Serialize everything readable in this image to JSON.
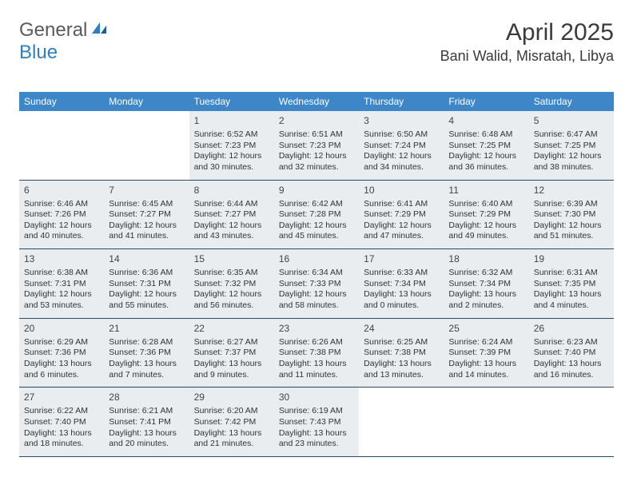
{
  "logo": {
    "text1": "General",
    "text2": "Blue"
  },
  "title": "April 2025",
  "location": "Bani Walid, Misratah, Libya",
  "colors": {
    "header_bg": "#3d87c9",
    "header_text": "#ffffff",
    "border": "#2b4a66",
    "shade_bg": "#e9edef",
    "text": "#333333",
    "title_text": "#3a3a3a",
    "logo_gray": "#5a5a5a",
    "logo_blue": "#2f7fbf"
  },
  "daynames": [
    "Sunday",
    "Monday",
    "Tuesday",
    "Wednesday",
    "Thursday",
    "Friday",
    "Saturday"
  ],
  "weeks": [
    [
      {
        "num": "",
        "shade": false,
        "sunrise": "",
        "sunset": "",
        "daylight": ""
      },
      {
        "num": "",
        "shade": false,
        "sunrise": "",
        "sunset": "",
        "daylight": ""
      },
      {
        "num": "1",
        "shade": true,
        "sunrise": "Sunrise: 6:52 AM",
        "sunset": "Sunset: 7:23 PM",
        "daylight": "Daylight: 12 hours and 30 minutes."
      },
      {
        "num": "2",
        "shade": true,
        "sunrise": "Sunrise: 6:51 AM",
        "sunset": "Sunset: 7:23 PM",
        "daylight": "Daylight: 12 hours and 32 minutes."
      },
      {
        "num": "3",
        "shade": true,
        "sunrise": "Sunrise: 6:50 AM",
        "sunset": "Sunset: 7:24 PM",
        "daylight": "Daylight: 12 hours and 34 minutes."
      },
      {
        "num": "4",
        "shade": true,
        "sunrise": "Sunrise: 6:48 AM",
        "sunset": "Sunset: 7:25 PM",
        "daylight": "Daylight: 12 hours and 36 minutes."
      },
      {
        "num": "5",
        "shade": true,
        "sunrise": "Sunrise: 6:47 AM",
        "sunset": "Sunset: 7:25 PM",
        "daylight": "Daylight: 12 hours and 38 minutes."
      }
    ],
    [
      {
        "num": "6",
        "shade": true,
        "sunrise": "Sunrise: 6:46 AM",
        "sunset": "Sunset: 7:26 PM",
        "daylight": "Daylight: 12 hours and 40 minutes."
      },
      {
        "num": "7",
        "shade": true,
        "sunrise": "Sunrise: 6:45 AM",
        "sunset": "Sunset: 7:27 PM",
        "daylight": "Daylight: 12 hours and 41 minutes."
      },
      {
        "num": "8",
        "shade": true,
        "sunrise": "Sunrise: 6:44 AM",
        "sunset": "Sunset: 7:27 PM",
        "daylight": "Daylight: 12 hours and 43 minutes."
      },
      {
        "num": "9",
        "shade": true,
        "sunrise": "Sunrise: 6:42 AM",
        "sunset": "Sunset: 7:28 PM",
        "daylight": "Daylight: 12 hours and 45 minutes."
      },
      {
        "num": "10",
        "shade": true,
        "sunrise": "Sunrise: 6:41 AM",
        "sunset": "Sunset: 7:29 PM",
        "daylight": "Daylight: 12 hours and 47 minutes."
      },
      {
        "num": "11",
        "shade": true,
        "sunrise": "Sunrise: 6:40 AM",
        "sunset": "Sunset: 7:29 PM",
        "daylight": "Daylight: 12 hours and 49 minutes."
      },
      {
        "num": "12",
        "shade": true,
        "sunrise": "Sunrise: 6:39 AM",
        "sunset": "Sunset: 7:30 PM",
        "daylight": "Daylight: 12 hours and 51 minutes."
      }
    ],
    [
      {
        "num": "13",
        "shade": true,
        "sunrise": "Sunrise: 6:38 AM",
        "sunset": "Sunset: 7:31 PM",
        "daylight": "Daylight: 12 hours and 53 minutes."
      },
      {
        "num": "14",
        "shade": true,
        "sunrise": "Sunrise: 6:36 AM",
        "sunset": "Sunset: 7:31 PM",
        "daylight": "Daylight: 12 hours and 55 minutes."
      },
      {
        "num": "15",
        "shade": true,
        "sunrise": "Sunrise: 6:35 AM",
        "sunset": "Sunset: 7:32 PM",
        "daylight": "Daylight: 12 hours and 56 minutes."
      },
      {
        "num": "16",
        "shade": true,
        "sunrise": "Sunrise: 6:34 AM",
        "sunset": "Sunset: 7:33 PM",
        "daylight": "Daylight: 12 hours and 58 minutes."
      },
      {
        "num": "17",
        "shade": true,
        "sunrise": "Sunrise: 6:33 AM",
        "sunset": "Sunset: 7:34 PM",
        "daylight": "Daylight: 13 hours and 0 minutes."
      },
      {
        "num": "18",
        "shade": true,
        "sunrise": "Sunrise: 6:32 AM",
        "sunset": "Sunset: 7:34 PM",
        "daylight": "Daylight: 13 hours and 2 minutes."
      },
      {
        "num": "19",
        "shade": true,
        "sunrise": "Sunrise: 6:31 AM",
        "sunset": "Sunset: 7:35 PM",
        "daylight": "Daylight: 13 hours and 4 minutes."
      }
    ],
    [
      {
        "num": "20",
        "shade": true,
        "sunrise": "Sunrise: 6:29 AM",
        "sunset": "Sunset: 7:36 PM",
        "daylight": "Daylight: 13 hours and 6 minutes."
      },
      {
        "num": "21",
        "shade": true,
        "sunrise": "Sunrise: 6:28 AM",
        "sunset": "Sunset: 7:36 PM",
        "daylight": "Daylight: 13 hours and 7 minutes."
      },
      {
        "num": "22",
        "shade": true,
        "sunrise": "Sunrise: 6:27 AM",
        "sunset": "Sunset: 7:37 PM",
        "daylight": "Daylight: 13 hours and 9 minutes."
      },
      {
        "num": "23",
        "shade": true,
        "sunrise": "Sunrise: 6:26 AM",
        "sunset": "Sunset: 7:38 PM",
        "daylight": "Daylight: 13 hours and 11 minutes."
      },
      {
        "num": "24",
        "shade": true,
        "sunrise": "Sunrise: 6:25 AM",
        "sunset": "Sunset: 7:38 PM",
        "daylight": "Daylight: 13 hours and 13 minutes."
      },
      {
        "num": "25",
        "shade": true,
        "sunrise": "Sunrise: 6:24 AM",
        "sunset": "Sunset: 7:39 PM",
        "daylight": "Daylight: 13 hours and 14 minutes."
      },
      {
        "num": "26",
        "shade": true,
        "sunrise": "Sunrise: 6:23 AM",
        "sunset": "Sunset: 7:40 PM",
        "daylight": "Daylight: 13 hours and 16 minutes."
      }
    ],
    [
      {
        "num": "27",
        "shade": true,
        "sunrise": "Sunrise: 6:22 AM",
        "sunset": "Sunset: 7:40 PM",
        "daylight": "Daylight: 13 hours and 18 minutes."
      },
      {
        "num": "28",
        "shade": true,
        "sunrise": "Sunrise: 6:21 AM",
        "sunset": "Sunset: 7:41 PM",
        "daylight": "Daylight: 13 hours and 20 minutes."
      },
      {
        "num": "29",
        "shade": true,
        "sunrise": "Sunrise: 6:20 AM",
        "sunset": "Sunset: 7:42 PM",
        "daylight": "Daylight: 13 hours and 21 minutes."
      },
      {
        "num": "30",
        "shade": true,
        "sunrise": "Sunrise: 6:19 AM",
        "sunset": "Sunset: 7:43 PM",
        "daylight": "Daylight: 13 hours and 23 minutes."
      },
      {
        "num": "",
        "shade": false,
        "sunrise": "",
        "sunset": "",
        "daylight": ""
      },
      {
        "num": "",
        "shade": false,
        "sunrise": "",
        "sunset": "",
        "daylight": ""
      },
      {
        "num": "",
        "shade": false,
        "sunrise": "",
        "sunset": "",
        "daylight": ""
      }
    ]
  ]
}
